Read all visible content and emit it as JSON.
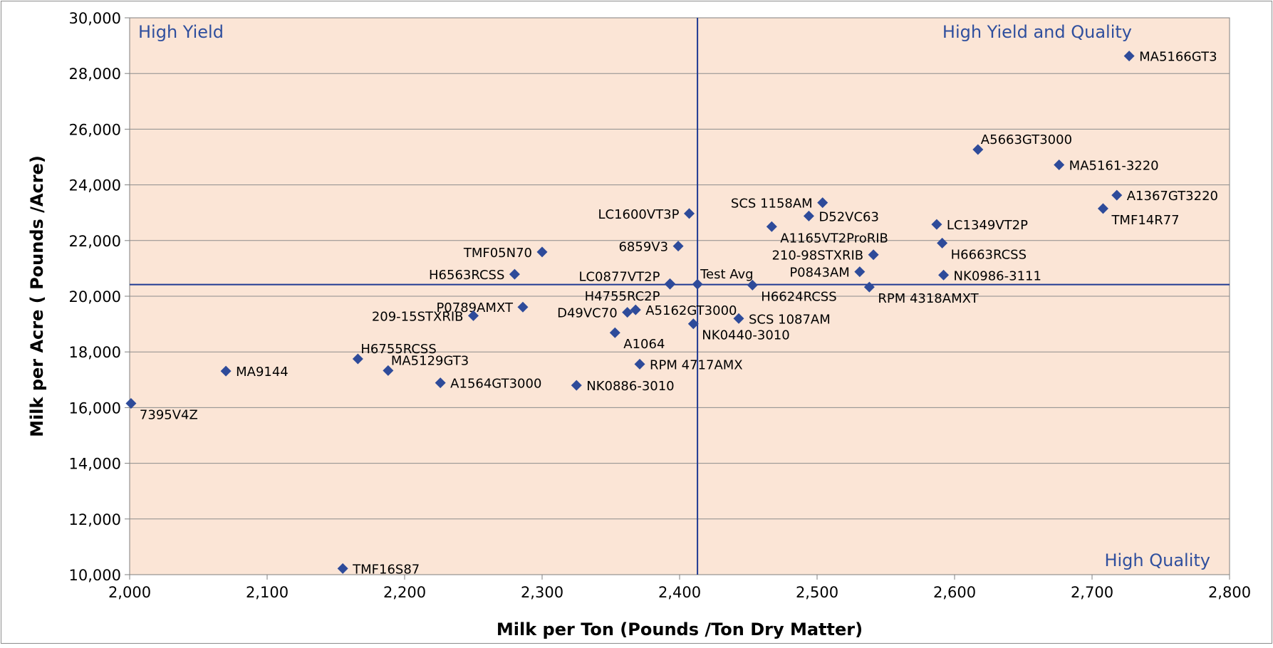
{
  "chart_data": {
    "type": "scatter",
    "title": "",
    "xlabel": "Milk per Ton (Pounds /Ton Dry Matter)",
    "ylabel": "Milk per Acre ( Pounds /Acre)",
    "xlim": [
      2000,
      2800
    ],
    "ylim": [
      10000,
      30000
    ],
    "x_ticks": [
      2000,
      2100,
      2200,
      2300,
      2400,
      2500,
      2600,
      2700,
      2800
    ],
    "y_ticks": [
      10000,
      12000,
      14000,
      16000,
      18000,
      20000,
      22000,
      24000,
      26000,
      28000,
      30000
    ],
    "x_tick_labels": [
      "2,000",
      "2,100",
      "2,200",
      "2,300",
      "2,400",
      "2,500",
      "2,600",
      "2,700",
      "2,800"
    ],
    "y_tick_labels": [
      "10,000",
      "12,000",
      "14,000",
      "16,000",
      "18,000",
      "20,000",
      "22,000",
      "24,000",
      "26,000",
      "28,000",
      "30,000"
    ],
    "grid": "horizontal",
    "reference_lines": {
      "x": 2413,
      "y": 20420
    },
    "quadrant_labels": [
      {
        "text": "High Yield",
        "corner": "top-left"
      },
      {
        "text": "High Yield and Quality",
        "corner": "top-right"
      },
      {
        "text": "High Quality",
        "corner": "bottom-right"
      }
    ],
    "colors": {
      "plot_background": "#fbe5d6",
      "marker": "#2e4b9a",
      "reference_line": "#1f3a93",
      "quadrant_text": "#2f4f9e"
    },
    "points": [
      {
        "label": "MA5166GT3",
        "x": 2727,
        "y": 28630,
        "label_pos": "right"
      },
      {
        "label": "A5663GT3000",
        "x": 2617,
        "y": 25270,
        "label_pos": "above-right"
      },
      {
        "label": "MA5161-3220",
        "x": 2676,
        "y": 24720,
        "label_pos": "right"
      },
      {
        "label": "A1367GT3220",
        "x": 2718,
        "y": 23630,
        "label_pos": "right"
      },
      {
        "label": "TMF14R77",
        "x": 2708,
        "y": 23150,
        "label_pos": "below-right"
      },
      {
        "label": "SCS 1158AM",
        "x": 2504,
        "y": 23360,
        "label_pos": "left"
      },
      {
        "label": "D52VC63",
        "x": 2494,
        "y": 22880,
        "label_pos": "right"
      },
      {
        "label": "A1165VT2ProRIB",
        "x": 2467,
        "y": 22500,
        "label_pos": "below-right"
      },
      {
        "label": "LC1349VT2P",
        "x": 2587,
        "y": 22580,
        "label_pos": "right"
      },
      {
        "label": "H6663RCSS",
        "x": 2591,
        "y": 21910,
        "label_pos": "below-right"
      },
      {
        "label": "210-98STXRIB",
        "x": 2541,
        "y": 21490,
        "label_pos": "left"
      },
      {
        "label": "P0843AM",
        "x": 2531,
        "y": 20880,
        "label_pos": "left"
      },
      {
        "label": "NK0986-3111",
        "x": 2592,
        "y": 20760,
        "label_pos": "right"
      },
      {
        "label": "RPM 4318AMXT",
        "x": 2538,
        "y": 20330,
        "label_pos": "below-right"
      },
      {
        "label": "H6624RCSS",
        "x": 2453,
        "y": 20400,
        "label_pos": "below-right"
      },
      {
        "label": "Test Avg",
        "x": 2413,
        "y": 20430,
        "label_pos": "above-right"
      },
      {
        "label": "LC1600VT3P",
        "x": 2407,
        "y": 22970,
        "label_pos": "left"
      },
      {
        "label": "6859V3",
        "x": 2399,
        "y": 21800,
        "label_pos": "left"
      },
      {
        "label": "LC0877VT2P",
        "x": 2393,
        "y": 20450,
        "label_pos": "above-left"
      },
      {
        "label": "H4755RC2P",
        "x": 2393,
        "y": 20430,
        "label_pos": "below-left"
      },
      {
        "label": "TMF05N70",
        "x": 2300,
        "y": 21590,
        "label_pos": "left"
      },
      {
        "label": "H6563RCSS",
        "x": 2280,
        "y": 20790,
        "label_pos": "left"
      },
      {
        "label": "P0789AMXT",
        "x": 2286,
        "y": 19610,
        "label_pos": "left"
      },
      {
        "label": "209-15STXRIB",
        "x": 2250,
        "y": 19300,
        "label_pos": "left"
      },
      {
        "label": "D49VC70",
        "x": 2362,
        "y": 19420,
        "label_pos": "left"
      },
      {
        "label": "A5162GT3000",
        "x": 2368,
        "y": 19510,
        "label_pos": "right"
      },
      {
        "label": "SCS 1087AM",
        "x": 2443,
        "y": 19200,
        "label_pos": "right"
      },
      {
        "label": "NK0440-3010",
        "x": 2410,
        "y": 19010,
        "label_pos": "below-right"
      },
      {
        "label": "A1064",
        "x": 2353,
        "y": 18690,
        "label_pos": "below-right"
      },
      {
        "label": "H6755RCSS",
        "x": 2166,
        "y": 17750,
        "label_pos": "above-right"
      },
      {
        "label": "MA5129GT3",
        "x": 2188,
        "y": 17330,
        "label_pos": "above-right"
      },
      {
        "label": "RPM 4717AMX",
        "x": 2371,
        "y": 17560,
        "label_pos": "right"
      },
      {
        "label": "MA9144",
        "x": 2070,
        "y": 17310,
        "label_pos": "right"
      },
      {
        "label": "A1564GT3000",
        "x": 2226,
        "y": 16890,
        "label_pos": "right"
      },
      {
        "label": "NK0886-3010",
        "x": 2325,
        "y": 16800,
        "label_pos": "right"
      },
      {
        "label": "7395V4Z",
        "x": 2001,
        "y": 16150,
        "label_pos": "below-right"
      },
      {
        "label": "TMF16S87",
        "x": 2155,
        "y": 10220,
        "label_pos": "right"
      }
    ]
  }
}
